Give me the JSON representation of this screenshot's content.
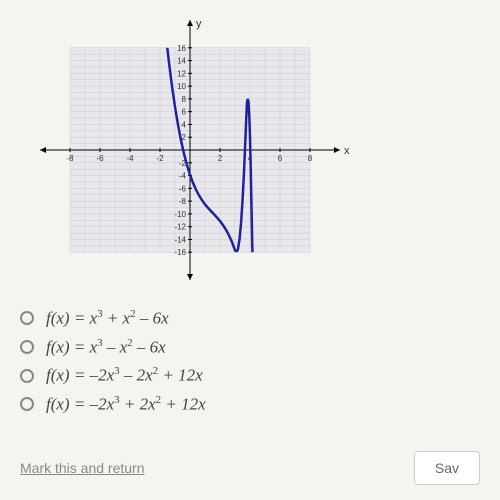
{
  "graph": {
    "type": "line",
    "xlim": [
      -9,
      9
    ],
    "ylim": [
      -18,
      18
    ],
    "xtick_labels": [
      -8,
      -6,
      -4,
      -2,
      2,
      4,
      6,
      8
    ],
    "ytick_labels_pos": [
      2,
      4,
      6,
      8,
      10,
      12,
      14,
      16
    ],
    "ytick_labels_neg": [
      -2,
      -4,
      -6,
      -8,
      -10,
      -12,
      -14,
      -16
    ],
    "x_axis_label": "x",
    "y_axis_label": "y",
    "grid_color": "#c8c8d0",
    "grid_bg": "#e8e8ec",
    "axis_color": "#000000",
    "curve_color": "#2020a0",
    "curve_width": 2.5,
    "label_fontsize": 8,
    "axis_label_fontsize": 11,
    "curve_points": [
      [
        -1.6,
        18
      ],
      [
        -1.5,
        15.75
      ],
      [
        -1.4,
        13.66
      ],
      [
        -1.2,
        9.98
      ],
      [
        -1.0,
        6.75
      ],
      [
        -0.8,
        3.94
      ],
      [
        -0.6,
        1.51
      ],
      [
        -0.4,
        -0.58
      ],
      [
        -0.2,
        -2.36
      ],
      [
        0,
        -3.88
      ],
      [
        0.2,
        -5.15
      ],
      [
        0.4,
        -6.22
      ],
      [
        0.6,
        -7.11
      ],
      [
        0.8,
        -7.86
      ],
      [
        1.0,
        -8.5
      ],
      [
        1.2,
        -9.06
      ],
      [
        1.4,
        -9.57
      ],
      [
        1.6,
        -10.06
      ],
      [
        1.8,
        -10.57
      ],
      [
        2.0,
        -11.12
      ],
      [
        2.2,
        -11.75
      ],
      [
        2.4,
        -12.49
      ],
      [
        2.6,
        -13.37
      ],
      [
        2.8,
        -14.42
      ],
      [
        3.0,
        -15.69
      ],
      [
        3.1,
        -16.0
      ],
      [
        3.2,
        -15.5
      ],
      [
        3.3,
        -14.0
      ],
      [
        3.4,
        -11.5
      ],
      [
        3.5,
        -8.0
      ],
      [
        3.6,
        -3.5
      ],
      [
        3.7,
        2.0
      ],
      [
        3.75,
        5.0
      ],
      [
        3.8,
        7.5
      ],
      [
        3.85,
        8.0
      ],
      [
        3.9,
        7.5
      ],
      [
        3.95,
        5.5
      ],
      [
        4.0,
        2.0
      ],
      [
        4.05,
        -3.0
      ],
      [
        4.1,
        -9.0
      ],
      [
        4.15,
        -15.0
      ],
      [
        4.2,
        -18.0
      ]
    ]
  },
  "options": [
    {
      "formula_html": "f(x) = x<sup>3</sup> + x<sup>2</sup> – 6x"
    },
    {
      "formula_html": "f(x) = x<sup>3</sup> – x<sup>2</sup> – 6x"
    },
    {
      "formula_html": "f(x) = –2x<sup>3</sup> – 2x<sup>2</sup> + 12x"
    },
    {
      "formula_html": "f(x) = –2x<sup>3</sup> + 2x<sup>2</sup> + 12x"
    }
  ],
  "bottom": {
    "mark_return": "Mark this and return",
    "save_label": "Sav"
  }
}
